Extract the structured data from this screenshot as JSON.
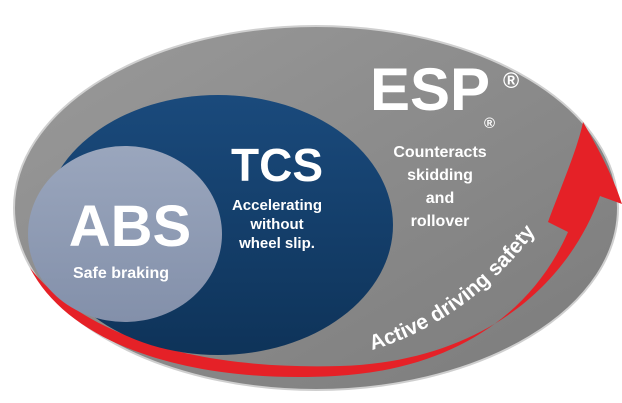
{
  "esp": {
    "title": "ESP",
    "title_mark": "®",
    "sub_mark": "®",
    "lines": [
      "Counteracts",
      "skidding",
      "and",
      "rollover"
    ]
  },
  "tcs": {
    "title": "TCS",
    "lines": [
      "Accelerating",
      "without",
      "wheel slip."
    ]
  },
  "abs": {
    "title": "ABS",
    "subtitle": "Safe braking"
  },
  "arrow": {
    "label": "Active driving safety"
  },
  "colors": {
    "esp": "#8e8e8e",
    "tcs": "#113d6a",
    "abs": "#8d9ab3",
    "arrow": "#e52127",
    "text": "#ffffff"
  }
}
